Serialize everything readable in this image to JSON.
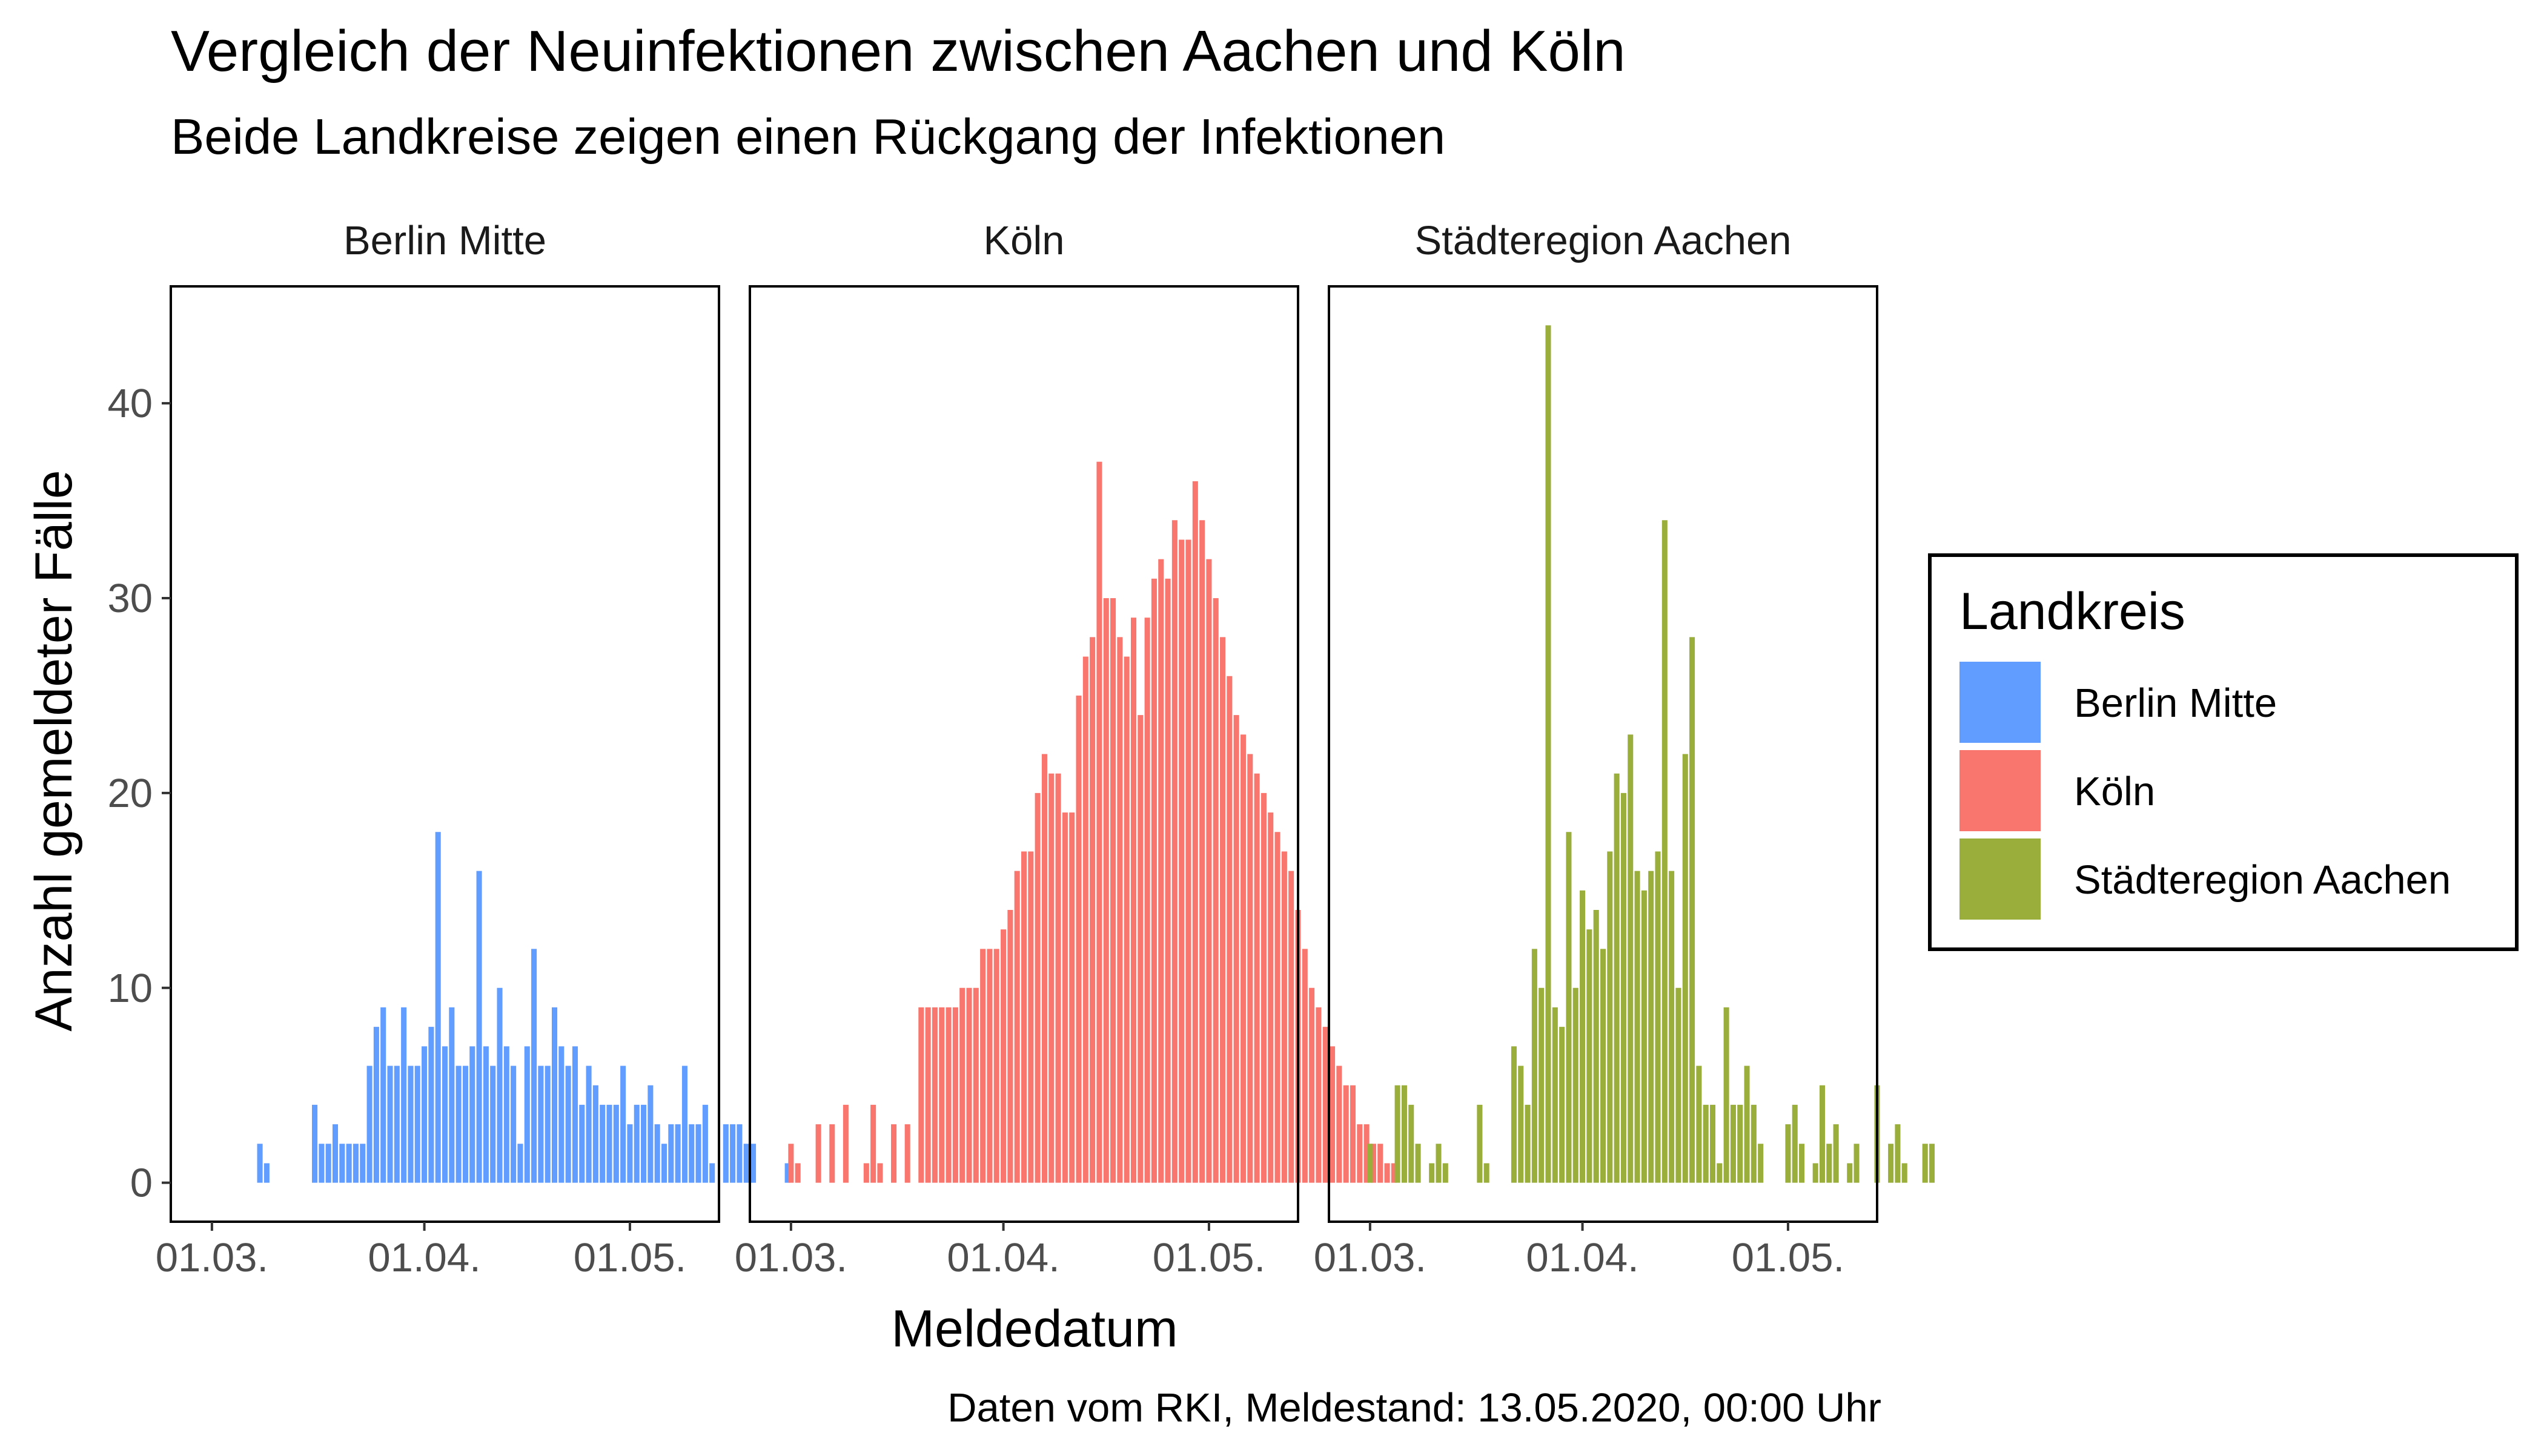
{
  "chart_data": {
    "type": "bar",
    "title": "Vergleich der Neuinfektionen zwischen Aachen und Köln",
    "subtitle": "Beide Landkreise zeigen einen Rückgang der Infektionen",
    "xlabel": "Meldedatum",
    "ylabel": "Anzahl gemeldeter Fälle",
    "caption": "Daten vom RKI, Meldestand: 13.05.2020, 00:00 Uhr",
    "ylim": [
      -2,
      46
    ],
    "yticks": [
      0,
      10,
      20,
      30,
      40
    ],
    "xlim": [
      "2020-02-24",
      "2020-05-14"
    ],
    "xticks": [
      {
        "date": "2020-03-01",
        "label": "01.03."
      },
      {
        "date": "2020-04-01",
        "label": "01.04."
      },
      {
        "date": "2020-05-01",
        "label": "01.05."
      }
    ],
    "grid": false,
    "legend": {
      "title": "Landkreis",
      "position": "right",
      "entries": [
        "Berlin Mitte",
        "Köln",
        "Städteregion Aachen"
      ]
    },
    "series": [
      {
        "name": "Berlin Mitte",
        "color": "#619CFF",
        "start_date": "2020-03-01",
        "values": [
          0,
          0,
          0,
          0,
          0,
          0,
          0,
          2,
          1,
          0,
          0,
          0,
          0,
          0,
          0,
          4,
          2,
          2,
          3,
          2,
          2,
          2,
          2,
          6,
          8,
          9,
          6,
          6,
          9,
          6,
          6,
          7,
          8,
          18,
          7,
          9,
          6,
          6,
          7,
          16,
          7,
          6,
          10,
          7,
          6,
          2,
          7,
          12,
          6,
          6,
          9,
          7,
          6,
          7,
          4,
          6,
          5,
          4,
          4,
          4,
          6,
          3,
          4,
          4,
          5,
          3,
          2,
          3,
          3,
          6,
          3,
          3,
          4,
          1,
          0,
          3,
          3,
          3,
          2,
          2,
          0,
          0,
          0,
          0,
          1
        ]
      },
      {
        "name": "Köln",
        "color": "#F8766D",
        "start_date": "2020-03-01",
        "values": [
          2,
          1,
          0,
          0,
          3,
          0,
          3,
          0,
          4,
          0,
          0,
          1,
          4,
          1,
          0,
          3,
          0,
          3,
          0,
          9,
          9,
          9,
          9,
          9,
          9,
          10,
          10,
          10,
          12,
          12,
          12,
          13,
          14,
          16,
          17,
          17,
          20,
          22,
          21,
          21,
          19,
          19,
          25,
          27,
          28,
          37,
          30,
          30,
          28,
          27,
          29,
          24,
          29,
          31,
          32,
          31,
          34,
          33,
          33,
          36,
          34,
          32,
          30,
          28,
          26,
          24,
          23,
          22,
          21,
          20,
          19,
          18,
          17,
          16,
          14,
          12,
          10,
          9,
          8,
          7,
          6,
          5,
          5,
          3,
          3,
          2,
          2,
          1,
          1
        ]
      },
      {
        "name": "Städteregion Aachen",
        "color": "#9AAE3B",
        "start_date": "2020-03-01",
        "values": [
          2,
          0,
          0,
          0,
          5,
          5,
          4,
          2,
          0,
          1,
          2,
          1,
          0,
          0,
          0,
          0,
          4,
          1,
          0,
          0,
          0,
          7,
          6,
          4,
          12,
          10,
          44,
          9,
          8,
          18,
          10,
          15,
          13,
          14,
          12,
          17,
          21,
          20,
          23,
          16,
          15,
          16,
          17,
          34,
          16,
          10,
          22,
          28,
          6,
          4,
          4,
          1,
          9,
          4,
          4,
          6,
          4,
          2,
          0,
          0,
          0,
          3,
          4,
          2,
          0,
          1,
          5,
          2,
          3,
          0,
          1,
          2,
          0,
          0,
          5,
          0,
          2,
          3,
          1,
          0,
          0,
          2,
          2
        ]
      }
    ]
  }
}
